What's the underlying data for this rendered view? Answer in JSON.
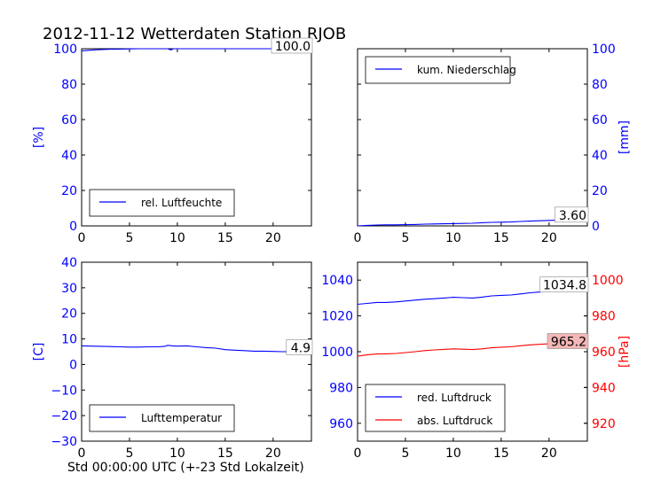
{
  "title": "2012-11-12 Wetterdaten Station RJOB",
  "xlabel": "Std 00:00:00 UTC (+-23 Std Lokalzeit)",
  "colors": {
    "blue": "#0000ff",
    "red": "#ff0000",
    "red_box": "#f4b6b6"
  },
  "chart_data": [
    {
      "type": "line",
      "ylabel": "[%]",
      "ylabel_side": "left",
      "xlim": [
        0,
        24
      ],
      "ylim": [
        0,
        100
      ],
      "xticks": [
        "0",
        "5",
        "10",
        "15",
        "20"
      ],
      "yticks": [
        "0",
        "20",
        "40",
        "60",
        "80",
        "100"
      ],
      "legend_position": "lower-left",
      "last_value_label": "100.0",
      "series": [
        {
          "name": "rel. Luftfeuchte",
          "color": "#0000ff",
          "x": [
            0,
            1,
            2,
            3,
            4,
            5,
            6,
            7,
            8,
            9,
            9.3,
            9.6,
            10,
            11,
            12,
            13,
            14,
            15,
            16,
            17,
            18,
            19,
            20,
            21,
            22,
            23,
            24
          ],
          "y": [
            98.8,
            99.2,
            99.5,
            99.7,
            99.8,
            99.9,
            100,
            100,
            100,
            100,
            99.3,
            100,
            100,
            100,
            100,
            100,
            100,
            100,
            100,
            100,
            100,
            100,
            100,
            100,
            100,
            100,
            100
          ]
        }
      ]
    },
    {
      "type": "line",
      "ylabel": "[mm]",
      "ylabel_side": "right",
      "xlim": [
        0,
        24
      ],
      "ylim": [
        0,
        100
      ],
      "xticks": [
        "0",
        "5",
        "10",
        "15",
        "20"
      ],
      "yticks": [
        "0",
        "20",
        "40",
        "60",
        "80",
        "100"
      ],
      "legend_position": "upper-left",
      "last_value_label": "3.60",
      "series": [
        {
          "name": "kum. Niederschlag",
          "color": "#0000ff",
          "x": [
            0,
            1,
            2,
            3,
            4,
            5,
            6,
            7,
            8,
            9,
            10,
            11,
            12,
            13,
            14,
            15,
            16,
            17,
            18,
            19,
            20,
            21,
            22,
            23,
            24
          ],
          "y": [
            0,
            0.3,
            0.5,
            0.6,
            0.6,
            0.7,
            0.8,
            1.0,
            1.1,
            1.2,
            1.3,
            1.4,
            1.5,
            1.8,
            2.0,
            2.1,
            2.2,
            2.5,
            2.7,
            2.9,
            3.1,
            3.3,
            3.4,
            3.5,
            3.6
          ]
        }
      ]
    },
    {
      "type": "line",
      "ylabel": "[C]",
      "ylabel_side": "left",
      "xlim": [
        0,
        24
      ],
      "ylim": [
        -30,
        40
      ],
      "xticks": [
        "0",
        "5",
        "10",
        "15",
        "20"
      ],
      "yticks": [
        "−30",
        "−20",
        "−10",
        "0",
        "10",
        "20",
        "30",
        "40"
      ],
      "legend_position": "lower-left",
      "last_value_label": "4.9",
      "series": [
        {
          "name": "Lufttemperatur",
          "color": "#0000ff",
          "x": [
            0,
            1,
            2,
            3,
            4,
            5,
            6,
            7,
            8,
            8.7,
            9,
            9.5,
            10,
            11,
            12,
            13,
            14,
            15,
            16,
            17,
            18,
            19,
            20,
            21,
            22,
            23,
            24
          ],
          "y": [
            7.3,
            7.2,
            7.1,
            7.0,
            6.9,
            6.8,
            6.8,
            6.9,
            6.9,
            7.1,
            7.5,
            7.3,
            7.2,
            7.3,
            6.9,
            6.6,
            6.4,
            5.8,
            5.6,
            5.4,
            5.2,
            5.2,
            5.1,
            5.0,
            5.0,
            4.9,
            4.9
          ]
        }
      ]
    },
    {
      "type": "line",
      "ylabel": "[hPa]",
      "ylabel_side": "right",
      "xlim": [
        0,
        24
      ],
      "ylim": [
        950,
        1050
      ],
      "ylim_right": [
        910,
        1010
      ],
      "xticks": [
        "0",
        "5",
        "10",
        "15",
        "20"
      ],
      "yticks": [
        "960",
        "980",
        "1000",
        "1020",
        "1040"
      ],
      "yticks_right": [
        "920",
        "940",
        "960",
        "980",
        "1000"
      ],
      "legend_position": "lower-left",
      "last_value_label": "1034.8",
      "last_value_label_2": "965.2",
      "series": [
        {
          "name": "red. Luftdruck",
          "color": "#0000ff",
          "axis": "left",
          "x": [
            0,
            1,
            2,
            3,
            4,
            5,
            6,
            7,
            8,
            9,
            10,
            11,
            12,
            13,
            14,
            15,
            16,
            17,
            18,
            19,
            20,
            21,
            22,
            23,
            24
          ],
          "y": [
            1026.5,
            1027.0,
            1027.5,
            1027.5,
            1027.8,
            1028.3,
            1028.8,
            1029.3,
            1029.6,
            1030.0,
            1030.4,
            1030.2,
            1030.0,
            1030.5,
            1031.2,
            1031.5,
            1031.7,
            1032.3,
            1032.9,
            1033.3,
            1033.6,
            1034.0,
            1034.3,
            1034.6,
            1034.8
          ]
        },
        {
          "name": "abs. Luftdruck",
          "color": "#ff0000",
          "axis": "right",
          "x": [
            0,
            1,
            2,
            3,
            4,
            5,
            6,
            7,
            8,
            9,
            10,
            11,
            12,
            13,
            14,
            15,
            16,
            17,
            18,
            19,
            20,
            21,
            22,
            23,
            24
          ],
          "y": [
            957.5,
            958.2,
            958.7,
            958.8,
            959.0,
            959.5,
            960.0,
            960.6,
            961.0,
            961.3,
            961.6,
            961.4,
            961.2,
            961.6,
            962.2,
            962.5,
            962.7,
            963.3,
            963.8,
            964.1,
            964.4,
            964.7,
            964.9,
            965.1,
            965.2
          ]
        }
      ]
    }
  ]
}
